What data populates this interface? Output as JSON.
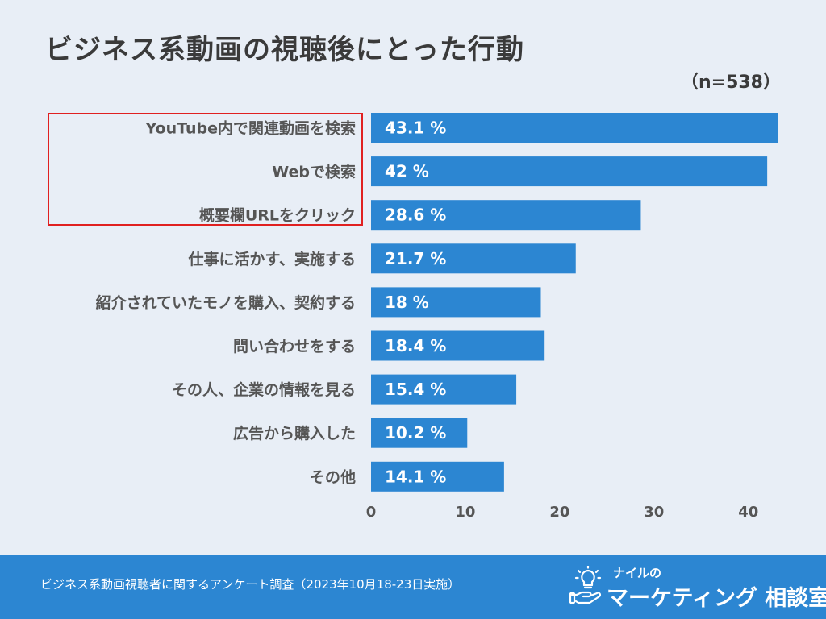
{
  "title": "ビジネス系動画の視聴後にとった行動",
  "sample_size": "（n=538）",
  "chart_data": {
    "type": "bar",
    "orientation": "horizontal",
    "title": "ビジネス系動画の視聴後にとった行動",
    "categories": [
      "YouTube内で関連動画を検索",
      "Webで検索",
      "概要欄URLをクリック",
      "仕事に活かす、実施する",
      "紹介されていたモノを購入、契約する",
      "問い合わせをする",
      "その人、企業の情報を見る",
      "広告から購入した",
      "その他"
    ],
    "values": [
      43.1,
      42,
      28.6,
      21.7,
      18,
      18.4,
      15.4,
      10.2,
      14.1
    ],
    "value_labels": [
      "43.1 %",
      "42 %",
      "28.6 %",
      "21.7 %",
      "18 %",
      "18.4 %",
      "15.4 %",
      "10.2 %",
      "14.1 %"
    ],
    "xlim": [
      0,
      43.1
    ],
    "xticks": [
      "0",
      "10",
      "20",
      "30",
      "40"
    ],
    "xlabel": "",
    "ylabel": "",
    "highlighted_categories": [
      0,
      1,
      2
    ],
    "colors": {
      "bar": "#2c86d2",
      "label": "#555555",
      "value_label": "#ffffff",
      "highlight": "#e02020",
      "footer": "#2c86d2"
    }
  },
  "footer": {
    "note": "ビジネス系動画視聴者に関するアンケート調査（2023年10月18-23日実施）",
    "logo_small": "ナイルの",
    "logo_main": "マーケティング",
    "logo_kanji": "相談室",
    "logo_icon": "lightbulb-hand-icon"
  }
}
